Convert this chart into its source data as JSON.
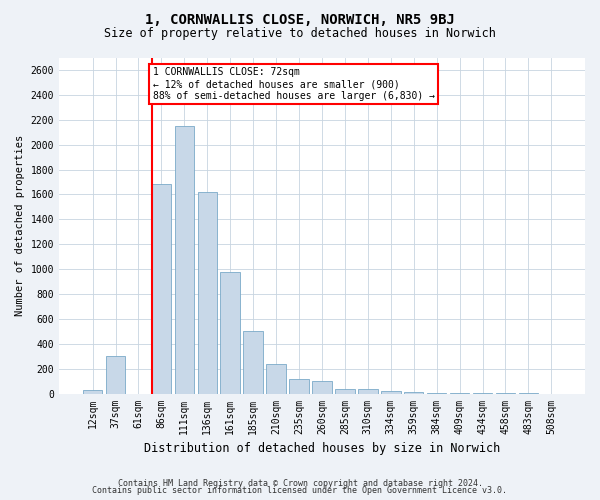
{
  "title": "1, CORNWALLIS CLOSE, NORWICH, NR5 9BJ",
  "subtitle": "Size of property relative to detached houses in Norwich",
  "xlabel": "Distribution of detached houses by size in Norwich",
  "ylabel": "Number of detached properties",
  "categories": [
    "12sqm",
    "37sqm",
    "61sqm",
    "86sqm",
    "111sqm",
    "136sqm",
    "161sqm",
    "185sqm",
    "210sqm",
    "235sqm",
    "260sqm",
    "285sqm",
    "310sqm",
    "334sqm",
    "359sqm",
    "384sqm",
    "409sqm",
    "434sqm",
    "458sqm",
    "483sqm",
    "508sqm"
  ],
  "values": [
    25,
    300,
    0,
    1680,
    2150,
    1620,
    980,
    500,
    240,
    120,
    100,
    40,
    35,
    22,
    10,
    5,
    2,
    2,
    1,
    1,
    0
  ],
  "bar_color": "#c8d8e8",
  "bar_edge_color": "#7aaac8",
  "vline_color": "red",
  "vline_x_index": 3,
  "annotation_text": "1 CORNWALLIS CLOSE: 72sqm\n← 12% of detached houses are smaller (900)\n88% of semi-detached houses are larger (6,830) →",
  "annotation_box_color": "white",
  "annotation_box_edge": "red",
  "ylim": [
    0,
    2700
  ],
  "yticks": [
    0,
    200,
    400,
    600,
    800,
    1000,
    1200,
    1400,
    1600,
    1800,
    2000,
    2200,
    2400,
    2600
  ],
  "footer1": "Contains HM Land Registry data © Crown copyright and database right 2024.",
  "footer2": "Contains public sector information licensed under the Open Government Licence v3.0.",
  "bg_color": "#eef2f7",
  "plot_bg_color": "white",
  "grid_color": "#c8d4e0",
  "title_fontsize": 10,
  "subtitle_fontsize": 8.5,
  "xlabel_fontsize": 8.5,
  "ylabel_fontsize": 7.5,
  "tick_fontsize": 7,
  "annotation_fontsize": 7,
  "footer_fontsize": 6
}
